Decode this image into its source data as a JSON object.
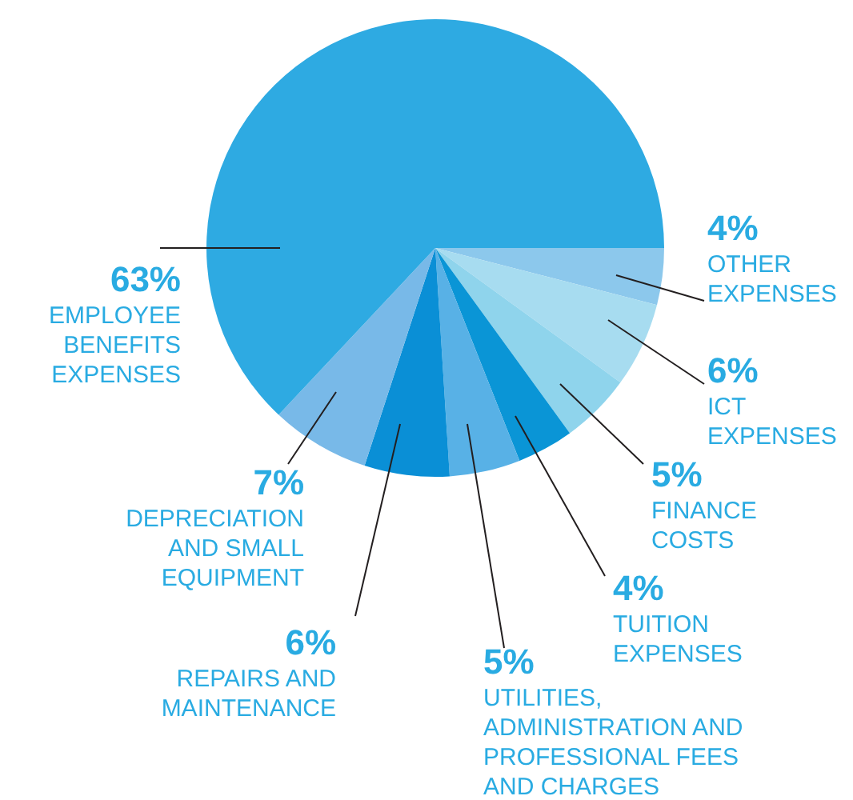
{
  "chart_data": {
    "type": "pie",
    "categories": [
      "OTHER EXPENSES",
      "ICT EXPENSES",
      "FINANCE COSTS",
      "TUITION EXPENSES",
      "UTILITIES, ADMINISTRATION AND PROFESSIONAL FEES AND CHARGES",
      "REPAIRS AND MAINTENANCE",
      "DEPRECIATION AND SMALL EQUIPMENT",
      "EMPLOYEE BENEFITS EXPENSES"
    ],
    "values": [
      4,
      6,
      5,
      4,
      5,
      6,
      7,
      63
    ],
    "value_labels": [
      "4%",
      "6%",
      "5%",
      "4%",
      "5%",
      "6%",
      "7%",
      "63%"
    ],
    "colors": [
      "#8cc8ec",
      "#a7dcf0",
      "#8fd4ec",
      "#0a95d6",
      "#58b1e6",
      "#0a8fd6",
      "#78b9e8",
      "#2eaae2"
    ],
    "legend": false
  }
}
